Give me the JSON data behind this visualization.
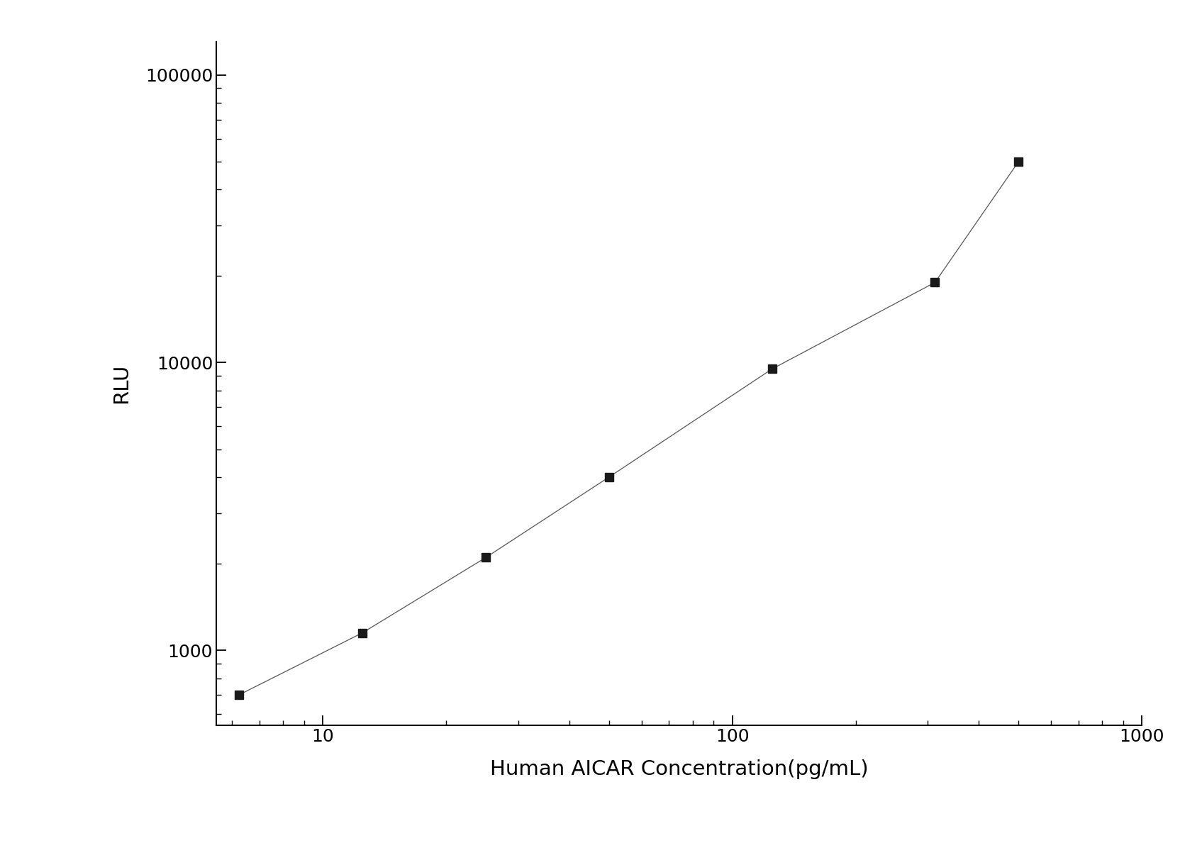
{
  "x_values": [
    6.25,
    12.5,
    25,
    50,
    125,
    312.5,
    500
  ],
  "y_values": [
    700,
    1150,
    2100,
    4000,
    9500,
    19000,
    50000
  ],
  "xlim": [
    5.5,
    1000
  ],
  "ylim": [
    550,
    130000
  ],
  "xlabel": "Human AICAR Concentration(pg/mL)",
  "ylabel": "RLU",
  "line_color": "#555555",
  "marker_color": "#1a1a1a",
  "marker": "s",
  "marker_size": 8,
  "line_width": 0.9,
  "xlabel_fontsize": 21,
  "ylabel_fontsize": 21,
  "tick_fontsize": 18,
  "background_color": "#ffffff",
  "spine_color": "#000000",
  "yticks": [
    1000,
    10000,
    100000
  ],
  "xticks": [
    10,
    100,
    1000
  ]
}
